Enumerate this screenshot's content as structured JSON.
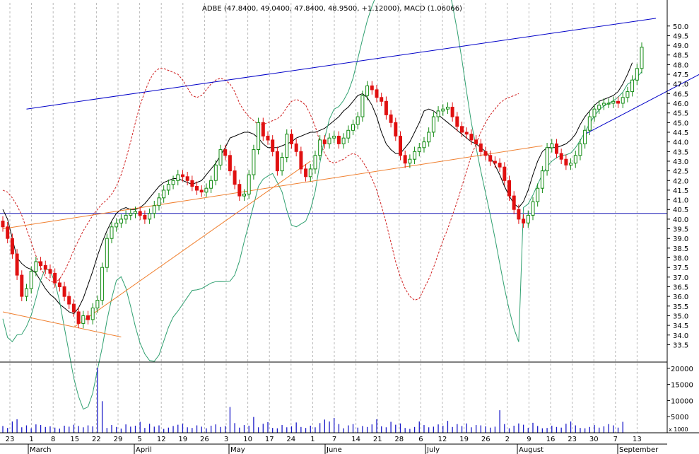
{
  "chart_data": {
    "type": "candlestick",
    "title": "ADBE (47.8400, 49.0400, 47.8400, 48.9500, +1.12000), MACD (1.06066)",
    "price_axis": {
      "min": 33.0,
      "max": 50.3,
      "ticks": [
        "33.5",
        "34.0",
        "34.5",
        "35.0",
        "35.5",
        "36.0",
        "36.5",
        "37.0",
        "37.5",
        "38.0",
        "38.5",
        "39.0",
        "39.5",
        "40.0",
        "40.5",
        "41.0",
        "41.5",
        "42.0",
        "42.5",
        "43.0",
        "43.5",
        "44.0",
        "44.5",
        "45.0",
        "45.5",
        "46.0",
        "46.5",
        "47.0",
        "47.5",
        "48.0",
        "48.5",
        "49.0",
        "49.5",
        "50.0"
      ]
    },
    "volume_axis": {
      "min": 0,
      "max": 21500,
      "ticks": [
        "5000",
        "10000",
        "15000",
        "20000"
      ],
      "multiplier_label": "x 1000"
    },
    "x_axis": {
      "day_labels": [
        "23",
        "1",
        "8",
        "15",
        "22",
        "29",
        "5",
        "12",
        "19",
        "26",
        "3",
        "10",
        "17",
        "24",
        "1",
        "7",
        "14",
        "21",
        "28",
        "6",
        "12",
        "19",
        "26",
        "2",
        "9",
        "16",
        "23",
        "30",
        "7",
        "13"
      ],
      "month_labels": [
        "March",
        "April",
        "May",
        "June",
        "July",
        "August",
        "September"
      ]
    },
    "horizontal_line": 40.3,
    "trend_lines": [
      {
        "color": "#0000c8",
        "points": [
          [
            5,
            45.7
          ],
          [
            138,
            50.4
          ]
        ]
      },
      {
        "color": "#0000c8",
        "points": [
          [
            123,
            44.4
          ],
          [
            155,
            48.5
          ]
        ]
      },
      {
        "color": "#f08030",
        "points": [
          [
            0,
            39.5
          ],
          [
            114,
            43.8
          ]
        ]
      },
      {
        "color": "#f08030",
        "points": [
          [
            15,
            34.4
          ],
          [
            65,
            43.0
          ]
        ]
      },
      {
        "color": "#f08030",
        "points": [
          [
            0,
            35.2
          ],
          [
            25,
            33.9
          ]
        ]
      }
    ],
    "closes": [
      39.6,
      39.0,
      38.2,
      37.1,
      36.0,
      36.4,
      37.3,
      37.8,
      37.6,
      37.4,
      37.2,
      36.7,
      36.5,
      36.0,
      35.6,
      35.2,
      34.6,
      35.0,
      34.8,
      35.4,
      35.8,
      37.5,
      39.0,
      39.6,
      39.8,
      40.0,
      40.2,
      40.3,
      40.4,
      40.2,
      40.0,
      40.3,
      40.7,
      41.1,
      41.5,
      41.8,
      42.0,
      42.3,
      42.2,
      42.0,
      41.7,
      41.5,
      41.4,
      41.6,
      42.0,
      42.8,
      43.6,
      43.3,
      42.5,
      41.8,
      41.2,
      41.3,
      42.3,
      43.6,
      45.0,
      44.3,
      44.1,
      43.5,
      42.5,
      43.2,
      44.4,
      43.9,
      43.5,
      42.6,
      42.2,
      42.6,
      43.3,
      44.1,
      43.9,
      44.2,
      44.3,
      43.9,
      44.2,
      44.6,
      44.9,
      45.3,
      46.4,
      46.9,
      46.7,
      46.3,
      46.1,
      45.4,
      45.0,
      44.3,
      43.3,
      42.9,
      43.1,
      43.5,
      43.7,
      44.0,
      44.5,
      45.3,
      45.6,
      45.7,
      45.8,
      45.3,
      44.8,
      44.5,
      44.4,
      44.1,
      43.9,
      43.5,
      43.3,
      43.0,
      42.9,
      42.7,
      42.0,
      41.2,
      40.5,
      40.0,
      39.8,
      40.2,
      40.9,
      41.6,
      42.5,
      43.7,
      43.9,
      43.4,
      43.1,
      42.8,
      42.9,
      43.3,
      43.9,
      44.6,
      45.3,
      45.7,
      45.9,
      46.0,
      46.0,
      46.1,
      46.0,
      46.3,
      46.6,
      47.2,
      47.8,
      48.9
    ],
    "moving_average": [
      40.5,
      40.0,
      39.0,
      38.0,
      37.7,
      37.5,
      37.4,
      37.2,
      36.8,
      36.4,
      36.1,
      35.9,
      35.6,
      35.4,
      35.2,
      35.1,
      35.4,
      35.9,
      36.6,
      37.3,
      38.1,
      38.8,
      39.4,
      39.9,
      40.3,
      40.5,
      40.6,
      40.5,
      40.5,
      40.6,
      40.8,
      41.1,
      41.4,
      41.7,
      41.9,
      42.0,
      42.1,
      42.1,
      42.0,
      41.9,
      41.8,
      41.9,
      42.0,
      42.3,
      42.6,
      42.9,
      43.3,
      43.7,
      44.2,
      44.3,
      44.4,
      44.5,
      44.5,
      44.4,
      44.2,
      43.9,
      43.7,
      43.7,
      43.7,
      43.8,
      43.9,
      44.0,
      44.2,
      44.3,
      44.4,
      44.5,
      44.5,
      44.6,
      44.7,
      44.9,
      45.1,
      45.3,
      45.6,
      45.8,
      46.1,
      46.4,
      46.5,
      46.3,
      45.9,
      45.3,
      44.5,
      43.9,
      43.6,
      43.4,
      43.4,
      43.7,
      44.0,
      44.5,
      45.0,
      45.6,
      45.7,
      45.6,
      45.4,
      45.2,
      45.0,
      44.8,
      44.6,
      44.4,
      44.2,
      44.0,
      43.9,
      43.7,
      43.5,
      43.2,
      42.8,
      42.3,
      41.7,
      41.2,
      40.8,
      40.6,
      40.9,
      41.5,
      42.3,
      43.0,
      43.5,
      43.7,
      43.7,
      43.7,
      43.8,
      43.9,
      44.1,
      44.4,
      44.9,
      45.3,
      45.6,
      45.9,
      46.1,
      46.2,
      46.3,
      46.4,
      46.6,
      47.0,
      47.5,
      48.1
    ],
    "moving_average_2": [
      41.5,
      41.4,
      41.1,
      40.7,
      40.2,
      39.5,
      38.8,
      38.1,
      37.5,
      37.0,
      36.8,
      36.7,
      36.9,
      37.3,
      37.8,
      38.4,
      38.9,
      39.4,
      39.8,
      40.2,
      40.5,
      40.8,
      41.0,
      41.3,
      41.7,
      42.3,
      43.1,
      44.0,
      45.0,
      45.9,
      46.6,
      47.2,
      47.6,
      47.8,
      47.8,
      47.7,
      47.6,
      47.5,
      47.2,
      46.8,
      46.4,
      46.3,
      46.4,
      46.7,
      47.0,
      47.2,
      47.3,
      47.2,
      47.0,
      46.6,
      46.0,
      45.6,
      45.3,
      45.1,
      44.9,
      44.9,
      45.0,
      45.1,
      45.2,
      45.4,
      45.8,
      46.1,
      46.2,
      46.1,
      45.9,
      45.4,
      44.8,
      44.0,
      43.4,
      43.0,
      42.9,
      43.0,
      43.1,
      43.3,
      43.4,
      43.3,
      43.0,
      42.6,
      42.1,
      41.5,
      40.7,
      39.8,
      38.8,
      37.8,
      37.0,
      36.4,
      36.0,
      35.8,
      35.9,
      36.4,
      36.9,
      37.5,
      38.2,
      38.9,
      39.5,
      40.2,
      40.9,
      41.7,
      42.5,
      43.3,
      43.9,
      44.5,
      45.0,
      45.4,
      45.7,
      46.0,
      46.2,
      46.3,
      46.4,
      46.5
    ],
    "moving_average_2_start_index": 0,
    "volumes": [
      2100,
      1500,
      3500,
      4200,
      1700,
      2300,
      1400,
      2600,
      2400,
      1800,
      2000,
      1600,
      1300,
      2200,
      1900,
      2500,
      2100,
      1700,
      2300,
      2000,
      20200,
      9800,
      1500,
      2400,
      1800,
      1300,
      2600,
      1900,
      2200,
      3400,
      1500,
      2800,
      1900,
      2300,
      1200,
      1600,
      2100,
      2500,
      2800,
      1700,
      1500,
      2300,
      1900,
      1400,
      2200,
      2600,
      1800,
      2100,
      8000,
      3000,
      1600,
      2400,
      2200,
      4900,
      1700,
      2800,
      3300,
      1500,
      1400,
      2400,
      1700,
      2000,
      3200,
      1800,
      1500,
      2200,
      1700,
      3000,
      4100,
      3500,
      4600,
      2700,
      1400,
      2300,
      2700,
      1600,
      2100,
      1800,
      2600,
      4200,
      2000,
      1700,
      3400,
      2500,
      2900,
      1500,
      1200,
      1800,
      3500,
      2400,
      1700,
      1900,
      2600,
      2200,
      3700,
      1800,
      2700,
      2100,
      2900,
      1700,
      2400,
      2300,
      2000,
      1600,
      1900,
      7000,
      2700,
      1400,
      2200,
      2900,
      2500,
      1500,
      3100,
      2100,
      1400,
      1500,
      2200,
      1800,
      1600,
      2800,
      3500,
      2300,
      1500,
      1400,
      1800,
      2400,
      1600,
      2000,
      2700,
      2300,
      1600,
      3400
    ]
  }
}
